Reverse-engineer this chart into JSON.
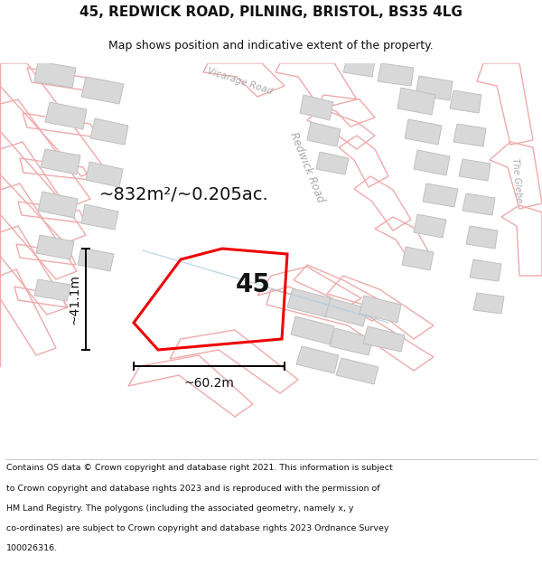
{
  "title_line1": "45, REDWICK ROAD, PILNING, BRISTOL, BS35 4LG",
  "title_line2": "Map shows position and indicative extent of the property.",
  "property_label": "45",
  "area_text": "~832m²/~0.205ac.",
  "dim_vertical": "~41.1m",
  "dim_horizontal": "~60.2m",
  "copyright_lines": [
    "Contains OS data © Crown copyright and database right 2021. This information is subject",
    "to Crown copyright and database rights 2023 and is reproduced with the permission of",
    "HM Land Registry. The polygons (including the associated geometry, namely x, y",
    "co-ordinates) are subject to Crown copyright and database rights 2023 Ordnance Survey",
    "100026316."
  ],
  "bg_color": "#ffffff",
  "road_stroke": "#f0aaaa",
  "road_stroke_dark": "#d08080",
  "building_fill": "#d8d8d8",
  "building_stroke": "#c0c0c0",
  "property_color": "#ee0000",
  "text_color": "#111111",
  "road_label_color": "#aaaaaa",
  "dim_color": "#000000",
  "blue_line_color": "#aacce0",
  "divider_color": "#cccccc",
  "title_fontsize": 11,
  "subtitle_fontsize": 9,
  "area_fontsize": 14,
  "dim_fontsize": 10,
  "label_fontsize": 20,
  "road_lw": 1.0,
  "property_lw": 2.2,
  "building_lw": 0.7
}
